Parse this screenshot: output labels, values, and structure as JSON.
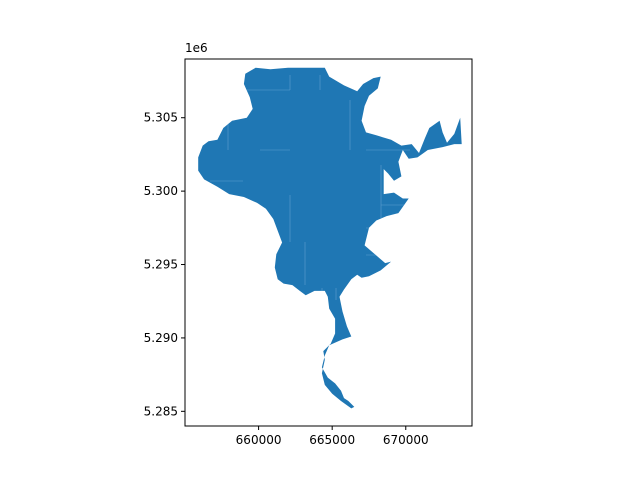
{
  "colors": {
    "fill": "#1f77b4",
    "parcel_lines": "#5f9fcf",
    "axes": "#000000",
    "background": "#ffffff"
  },
  "axes": {
    "y_offset_label": "1e6",
    "x_ticks": [
      "660000",
      "665000",
      "670000"
    ],
    "y_ticks": [
      "5.305",
      "5.300",
      "5.295",
      "5.290",
      "5.285"
    ]
  },
  "chart_data": {
    "type": "map",
    "title": "",
    "xlabel": "",
    "ylabel": "",
    "xlim": [
      655000,
      674500
    ],
    "ylim": [
      5284000,
      5309000
    ],
    "grid": false,
    "legend": "none",
    "x_ticks": [
      660000,
      665000,
      670000
    ],
    "y_ticks": [
      5305000,
      5300000,
      5295000,
      5290000,
      5285000
    ],
    "series": [
      {
        "geometry": "polygon",
        "coordinates": [
          [
            659100,
            5308000
          ],
          [
            659800,
            5308400
          ],
          [
            660800,
            5308300
          ],
          [
            662000,
            5308400
          ],
          [
            663500,
            5308400
          ],
          [
            664500,
            5308400
          ],
          [
            664800,
            5307800
          ],
          [
            665800,
            5307200
          ],
          [
            666700,
            5306800
          ],
          [
            667100,
            5307300
          ],
          [
            667800,
            5307700
          ],
          [
            668300,
            5307800
          ],
          [
            668100,
            5307000
          ],
          [
            667500,
            5306500
          ],
          [
            667200,
            5305800
          ],
          [
            667000,
            5304800
          ],
          [
            667300,
            5304000
          ],
          [
            668000,
            5303800
          ],
          [
            669000,
            5303500
          ],
          [
            669700,
            5303100
          ],
          [
            670400,
            5303200
          ],
          [
            670900,
            5302600
          ],
          [
            671300,
            5303600
          ],
          [
            671600,
            5304300
          ],
          [
            672300,
            5304800
          ],
          [
            672500,
            5304000
          ],
          [
            672800,
            5303300
          ],
          [
            673300,
            5303900
          ],
          [
            673700,
            5305000
          ],
          [
            673800,
            5303200
          ],
          [
            673300,
            5303200
          ],
          [
            672500,
            5303000
          ],
          [
            671500,
            5302800
          ],
          [
            670800,
            5302300
          ],
          [
            670200,
            5302200
          ],
          [
            669800,
            5302800
          ],
          [
            669500,
            5302000
          ],
          [
            669700,
            5301000
          ],
          [
            669200,
            5300700
          ],
          [
            668800,
            5301200
          ],
          [
            668500,
            5301500
          ],
          [
            668500,
            5299800
          ],
          [
            669200,
            5299900
          ],
          [
            669800,
            5299500
          ],
          [
            670200,
            5299500
          ],
          [
            669500,
            5298500
          ],
          [
            668700,
            5298300
          ],
          [
            668000,
            5298000
          ],
          [
            667500,
            5297500
          ],
          [
            667200,
            5296300
          ],
          [
            667900,
            5295700
          ],
          [
            668600,
            5295100
          ],
          [
            669000,
            5295200
          ],
          [
            668300,
            5294600
          ],
          [
            667500,
            5294200
          ],
          [
            667000,
            5294100
          ],
          [
            666700,
            5294300
          ],
          [
            666300,
            5294000
          ],
          [
            665800,
            5293300
          ],
          [
            665500,
            5292800
          ],
          [
            665700,
            5291800
          ],
          [
            666000,
            5290800
          ],
          [
            666300,
            5290100
          ],
          [
            665700,
            5289900
          ],
          [
            664800,
            5289500
          ],
          [
            664500,
            5288800
          ],
          [
            664300,
            5288000
          ],
          [
            664700,
            5287300
          ],
          [
            665200,
            5286900
          ],
          [
            665600,
            5286400
          ],
          [
            665800,
            5285900
          ],
          [
            666100,
            5285700
          ],
          [
            666500,
            5285300
          ],
          [
            666300,
            5285200
          ],
          [
            665600,
            5285700
          ],
          [
            665000,
            5286200
          ],
          [
            664500,
            5286800
          ],
          [
            664300,
            5287600
          ],
          [
            664500,
            5288500
          ],
          [
            664400,
            5289100
          ],
          [
            664900,
            5289600
          ],
          [
            665200,
            5290300
          ],
          [
            665200,
            5291300
          ],
          [
            664800,
            5292000
          ],
          [
            664700,
            5292800
          ],
          [
            664500,
            5293200
          ],
          [
            663800,
            5293200
          ],
          [
            663200,
            5292900
          ],
          [
            662800,
            5293200
          ],
          [
            662300,
            5293600
          ],
          [
            661700,
            5293700
          ],
          [
            661300,
            5294000
          ],
          [
            661100,
            5294800
          ],
          [
            661200,
            5295700
          ],
          [
            661600,
            5296500
          ],
          [
            661300,
            5297300
          ],
          [
            661000,
            5298100
          ],
          [
            660500,
            5298800
          ],
          [
            659900,
            5299200
          ],
          [
            659000,
            5299600
          ],
          [
            658000,
            5299800
          ],
          [
            657200,
            5300300
          ],
          [
            656300,
            5300800
          ],
          [
            655900,
            5301400
          ],
          [
            655900,
            5302300
          ],
          [
            656200,
            5303100
          ],
          [
            656600,
            5303400
          ],
          [
            657200,
            5303500
          ],
          [
            657600,
            5304300
          ],
          [
            658200,
            5304800
          ],
          [
            659200,
            5305000
          ],
          [
            659600,
            5305600
          ],
          [
            659400,
            5306400
          ],
          [
            659000,
            5307300
          ]
        ]
      }
    ]
  }
}
